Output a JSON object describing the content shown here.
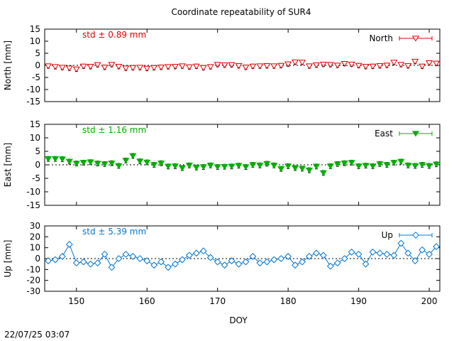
{
  "title": "Coordinate repeatability of SUR4",
  "footer_timestamp": "22/07/25 03:07",
  "chart_data": {
    "type": "scatter",
    "x_label": "DOY",
    "x_range": [
      145.5,
      201.5
    ],
    "x_ticks": [
      150,
      160,
      170,
      180,
      190,
      200
    ],
    "panels": [
      {
        "id": "north",
        "ylabel": "North [mm]",
        "ylim": [
          -15,
          15
        ],
        "yticks": [
          -15,
          -10,
          -5,
          0,
          5,
          10,
          15
        ],
        "legend": "North",
        "std_label": "std ± 0.89 mm",
        "color": "#e00000",
        "marker": "triangle-down-open",
        "x": [
          146,
          147,
          148,
          149,
          150,
          151,
          152,
          153,
          154,
          155,
          156,
          157,
          158,
          159,
          160,
          161,
          162,
          163,
          164,
          165,
          166,
          167,
          168,
          169,
          170,
          171,
          172,
          173,
          174,
          175,
          176,
          177,
          178,
          179,
          180,
          181,
          182,
          183,
          184,
          185,
          186,
          187,
          188,
          189,
          190,
          191,
          192,
          193,
          194,
          195,
          196,
          197,
          198,
          199,
          200,
          201
        ],
        "y": [
          -0.3,
          -0.6,
          -0.9,
          -1.2,
          -1.6,
          -0.4,
          -0.5,
          0.2,
          -0.8,
          0.3,
          -0.5,
          -1.2,
          -1.0,
          -0.9,
          -1.3,
          -1.0,
          -0.8,
          -0.6,
          -0.5,
          -0.3,
          -0.7,
          -0.4,
          -1.0,
          -0.6,
          0.3,
          0.1,
          0.2,
          -0.2,
          -0.8,
          -0.4,
          -0.3,
          -0.2,
          -0.3,
          -0.1,
          0.5,
          1.3,
          1.2,
          -0.3,
          0.1,
          0.4,
          0.3,
          0.0,
          0.7,
          0.4,
          -0.1,
          -0.5,
          -0.4,
          -0.2,
          0.0,
          1.2,
          0.3,
          -0.2,
          1.6,
          -0.4,
          1.0,
          0.8
        ]
      },
      {
        "id": "east",
        "ylabel": "East [mm]",
        "ylim": [
          -15,
          15
        ],
        "yticks": [
          -15,
          -10,
          -5,
          0,
          5,
          10,
          15
        ],
        "legend": "East",
        "std_label": "std ± 1.16 mm",
        "color": "#00b000",
        "marker": "triangle-down-filled",
        "x": [
          146,
          147,
          148,
          149,
          150,
          151,
          152,
          153,
          154,
          155,
          156,
          157,
          158,
          159,
          160,
          161,
          162,
          163,
          164,
          165,
          166,
          167,
          168,
          169,
          170,
          171,
          172,
          173,
          174,
          175,
          176,
          177,
          178,
          179,
          180,
          181,
          182,
          183,
          184,
          185,
          186,
          187,
          188,
          189,
          190,
          191,
          192,
          193,
          194,
          195,
          196,
          197,
          198,
          199,
          200,
          201
        ],
        "y": [
          2.2,
          2.2,
          2.1,
          1.2,
          0.5,
          0.8,
          1.0,
          0.5,
          0.3,
          0.6,
          -0.4,
          1.6,
          3.3,
          1.3,
          0.9,
          0.0,
          0.6,
          -0.6,
          -0.5,
          -1.2,
          -0.2,
          -1.0,
          -0.8,
          -0.2,
          -0.8,
          -0.7,
          -0.6,
          -0.3,
          -0.8,
          0.0,
          -0.2,
          0.4,
          -0.2,
          -1.5,
          -0.5,
          -1.2,
          -1.4,
          -2.0,
          -0.6,
          -3.0,
          -0.5,
          0.3,
          0.6,
          0.8,
          -0.5,
          -0.3,
          -0.5,
          0.3,
          0.0,
          0.8,
          1.2,
          -0.2,
          -0.4,
          0.0,
          -0.4,
          0.2
        ]
      },
      {
        "id": "up",
        "ylabel": "Up [mm]",
        "ylim": [
          -30,
          30
        ],
        "yticks": [
          -30,
          -20,
          -10,
          0,
          10,
          20,
          30
        ],
        "legend": "Up",
        "std_label": "std ± 5.39 mm",
        "color": "#0078d7",
        "marker": "diamond-open",
        "x": [
          146,
          147,
          148,
          149,
          150,
          151,
          152,
          153,
          154,
          155,
          156,
          157,
          158,
          159,
          160,
          161,
          162,
          163,
          164,
          165,
          166,
          167,
          168,
          169,
          170,
          171,
          172,
          173,
          174,
          175,
          176,
          177,
          178,
          179,
          180,
          181,
          182,
          183,
          184,
          185,
          186,
          187,
          188,
          189,
          190,
          191,
          192,
          193,
          194,
          195,
          196,
          197,
          198,
          199,
          200,
          201
        ],
        "y": [
          -2,
          -1,
          2,
          13,
          -4,
          -3,
          -5,
          -4,
          4,
          -8,
          0,
          4,
          2,
          0,
          -2,
          -6,
          -3,
          -8,
          -5,
          -1,
          3,
          5,
          7,
          1,
          -3,
          -6,
          -2,
          -5,
          -3,
          2,
          -4,
          -3,
          -1,
          0,
          2,
          -6,
          -3,
          2,
          5,
          3,
          -7,
          -4,
          0,
          6,
          4,
          -5,
          6,
          5,
          4,
          3,
          14,
          5,
          -2,
          8,
          4,
          11
        ]
      }
    ]
  }
}
